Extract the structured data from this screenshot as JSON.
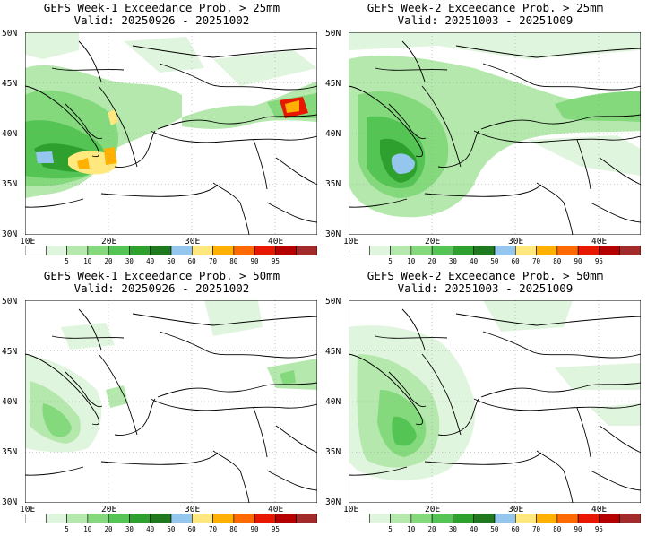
{
  "panels": [
    {
      "title": "GEFS Week-1 Exceedance Prob. > 25mm",
      "valid": "Valid: 20250926 - 20251002",
      "intensity": "w1_25"
    },
    {
      "title": "GEFS Week-2 Exceedance Prob. > 25mm",
      "valid": "Valid: 20251003 - 20251009",
      "intensity": "w2_25"
    },
    {
      "title": "GEFS Week-1 Exceedance Prob. > 50mm",
      "valid": "Valid: 20250926 - 20251002",
      "intensity": "w1_50"
    },
    {
      "title": "GEFS Week-2 Exceedance Prob. > 50mm",
      "valid": "Valid: 20251003 - 20251009",
      "intensity": "w2_50"
    }
  ],
  "lat_labels": [
    "50N",
    "45N",
    "40N",
    "35N",
    "30N"
  ],
  "lon_labels": [
    "10E",
    "20E",
    "30E",
    "40E"
  ],
  "colorbar": {
    "colors": [
      "#ffffff",
      "#e0f5dd",
      "#b5e8ad",
      "#84d97d",
      "#54c454",
      "#2ea02e",
      "#1f7a1f",
      "#94c6ee",
      "#ffe97f",
      "#ffb000",
      "#ff6a00",
      "#e81800",
      "#b40000",
      "#a32a2a"
    ],
    "labels": [
      "5",
      "10",
      "20",
      "30",
      "40",
      "50",
      "60",
      "70",
      "80",
      "90",
      "95"
    ]
  }
}
